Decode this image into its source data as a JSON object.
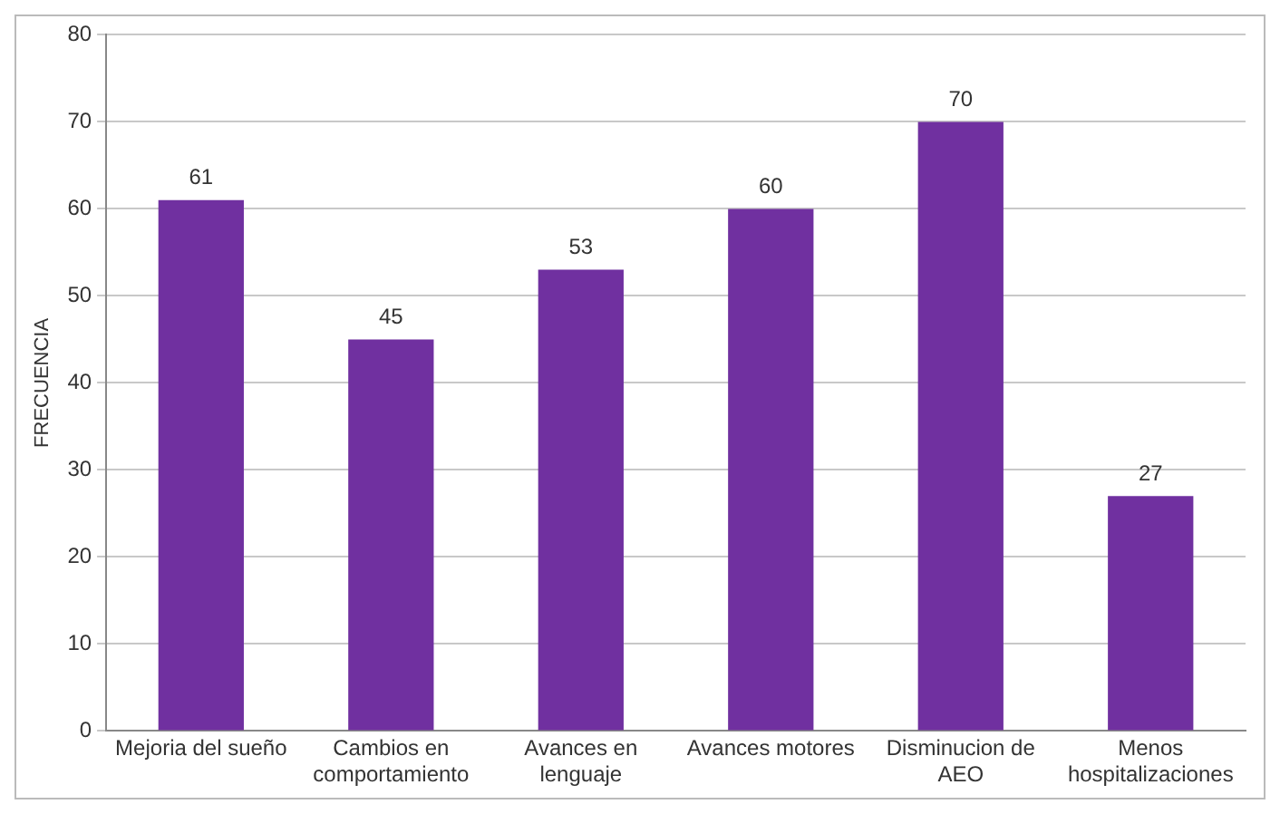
{
  "chart_data": {
    "type": "bar",
    "ylabel": "FRECUENCIA",
    "categories": [
      "Mejoria del sueño",
      "Cambios en comportamiento",
      "Avances en lenguaje",
      "Avances motores",
      "Disminucion de AEO",
      "Menos hospitalizaciones"
    ],
    "values": [
      61,
      45,
      53,
      60,
      70,
      27
    ],
    "color": "#7030a0",
    "ylim": [
      0,
      80
    ],
    "yticks": [
      0,
      10,
      20,
      30,
      40,
      50,
      60,
      70,
      80
    ],
    "grid": "y",
    "data_labels": true,
    "legend": false
  }
}
